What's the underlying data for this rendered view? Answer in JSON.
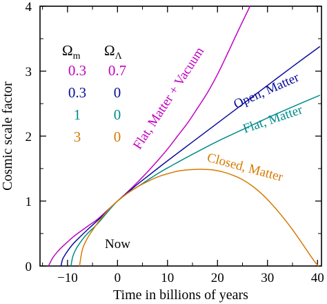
{
  "chart_data": {
    "type": "line",
    "xlabel": "Time in billions of years",
    "ylabel": "Cosmic scale factor",
    "xlim": [
      -15.5,
      40.8
    ],
    "ylim": [
      0,
      4
    ],
    "x_ticks": [
      -10,
      0,
      10,
      20,
      30,
      40
    ],
    "y_ticks": [
      0,
      1,
      2,
      3,
      4
    ],
    "grid": false,
    "annotation": "Now",
    "legend": {
      "header_m": "Ω",
      "header_m_sub": "m",
      "header_l": "Ω",
      "header_l_sub": "Λ",
      "placement": "top-left",
      "rows": [
        {
          "m": "0.3",
          "l": "0.7",
          "color": "#c000c0"
        },
        {
          "m": "0.3",
          "l": "0",
          "color": "#0a0a9a"
        },
        {
          "m": "1",
          "l": "0",
          "color": "#008b8b"
        },
        {
          "m": "3",
          "l": "0",
          "color": "#d67a00"
        }
      ]
    },
    "series": [
      {
        "name": "Flat, Matter + Vacuum",
        "color": "#c000c0",
        "label_at": {
          "x": 10.9,
          "y": 2.55
        },
        "label_angle_deg": -57,
        "x": [
          -13.8,
          -13,
          -12,
          -11,
          -10,
          -9,
          -8,
          -6,
          -4,
          -2,
          0,
          2,
          4,
          6,
          8,
          10,
          12,
          14,
          16,
          18,
          20,
          22,
          24,
          26.5
        ],
        "y": [
          0,
          0.12,
          0.22,
          0.3,
          0.37,
          0.44,
          0.5,
          0.61,
          0.72,
          0.86,
          1.0,
          1.14,
          1.29,
          1.45,
          1.62,
          1.8,
          2.0,
          2.2,
          2.43,
          2.67,
          2.95,
          3.27,
          3.6,
          4.0
        ]
      },
      {
        "name": "Open, Matter",
        "color": "#0a0a9a",
        "label_at": {
          "x": 30.1,
          "y": 2.64
        },
        "label_angle_deg": -24,
        "x": [
          -11.3,
          -11,
          -10.5,
          -10,
          -9,
          -8,
          -6,
          -4,
          -2,
          0,
          2,
          4,
          6,
          8,
          10,
          15,
          20,
          25,
          30,
          35,
          40.5
        ],
        "y": [
          0,
          0.1,
          0.17,
          0.23,
          0.33,
          0.41,
          0.56,
          0.7,
          0.85,
          1.0,
          1.13,
          1.26,
          1.38,
          1.5,
          1.62,
          1.91,
          2.2,
          2.49,
          2.78,
          3.07,
          3.38
        ]
      },
      {
        "name": "Flat, Matter",
        "color": "#008b8b",
        "label_at": {
          "x": 31.3,
          "y": 2.2
        },
        "label_angle_deg": -19,
        "x": [
          -9.3,
          -9,
          -8.5,
          -8,
          -7,
          -6,
          -4,
          -2,
          0,
          2,
          4,
          6,
          8,
          10,
          15,
          20,
          25,
          30,
          35,
          40.5
        ],
        "y": [
          0,
          0.13,
          0.23,
          0.3,
          0.41,
          0.5,
          0.65,
          0.83,
          1.0,
          1.12,
          1.22,
          1.32,
          1.42,
          1.51,
          1.72,
          1.92,
          2.1,
          2.28,
          2.45,
          2.63
        ]
      },
      {
        "name": "Closed, Matter",
        "color": "#d67a00",
        "label_at": {
          "x": 25.3,
          "y": 1.46
        },
        "label_angle_deg": 15,
        "x": [
          -7.6,
          -7,
          -6,
          -5,
          -4,
          -3,
          -2,
          -1,
          0,
          2,
          4,
          6,
          8,
          10,
          12,
          14,
          16.5,
          19,
          21,
          23,
          25,
          27,
          29,
          31,
          33,
          35,
          37,
          38.5,
          39.5,
          40.2
        ],
        "y": [
          0,
          0.26,
          0.43,
          0.55,
          0.66,
          0.76,
          0.85,
          0.93,
          1.0,
          1.12,
          1.22,
          1.3,
          1.37,
          1.42,
          1.46,
          1.48,
          1.49,
          1.48,
          1.45,
          1.4,
          1.33,
          1.23,
          1.1,
          0.94,
          0.76,
          0.56,
          0.34,
          0.17,
          0.06,
          0
        ]
      }
    ]
  }
}
